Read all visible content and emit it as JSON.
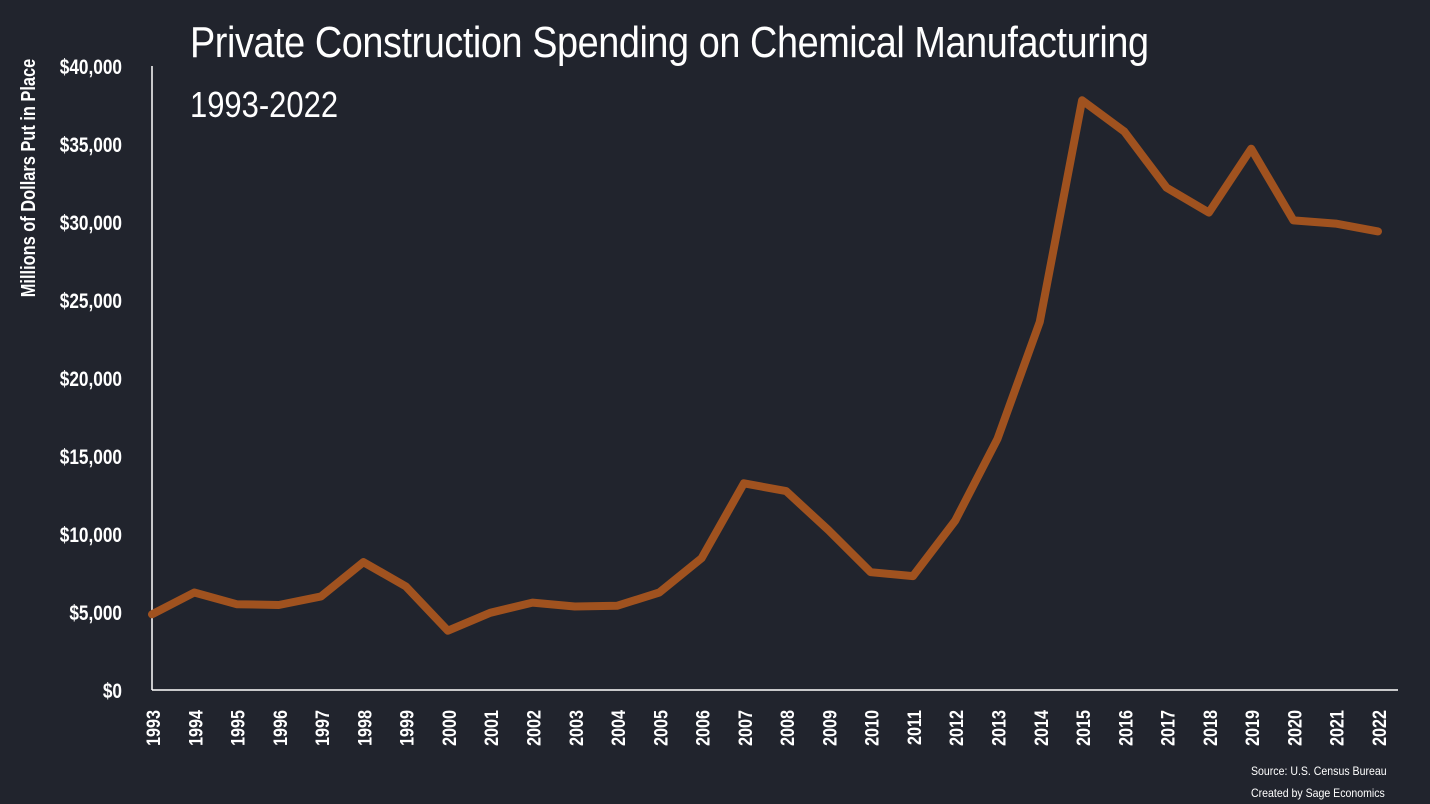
{
  "chart_data": {
    "type": "line",
    "title": "Private Construction Spending on Chemical Manufacturing",
    "subtitle": "1993-2022",
    "ylabel": "Millions of Dollars Put in Place",
    "xlabel": "",
    "ylim": [
      0,
      40000
    ],
    "y_ticks": [
      "$0",
      "$5,000",
      "$10,000",
      "$15,000",
      "$20,000",
      "$25,000",
      "$30,000",
      "$35,000",
      "$40,000"
    ],
    "x": [
      "1993",
      "1994",
      "1995",
      "1996",
      "1997",
      "1998",
      "1999",
      "2000",
      "2001",
      "2002",
      "2003",
      "2004",
      "2005",
      "2006",
      "2007",
      "2008",
      "2009",
      "2010",
      "2011",
      "2012",
      "2013",
      "2014",
      "2015",
      "2016",
      "2017",
      "2018",
      "2019",
      "2020",
      "2021",
      "2022"
    ],
    "values": [
      4850,
      6250,
      5500,
      5450,
      6000,
      8200,
      6650,
      3800,
      4950,
      5600,
      5350,
      5400,
      6250,
      8450,
      13250,
      12750,
      10250,
      7550,
      7300,
      10850,
      16100,
      23600,
      37800,
      35800,
      32200,
      30600,
      34700,
      30100,
      29900,
      29400
    ],
    "line_color": "#a0521f",
    "grid": false,
    "legend": "none"
  },
  "footer": {
    "source": "Source: U.S. Census Bureau",
    "credit": "Created by Sage Economics"
  },
  "colors": {
    "background": "#21242d",
    "text": "#ffffff",
    "axis": "#ffffff"
  }
}
